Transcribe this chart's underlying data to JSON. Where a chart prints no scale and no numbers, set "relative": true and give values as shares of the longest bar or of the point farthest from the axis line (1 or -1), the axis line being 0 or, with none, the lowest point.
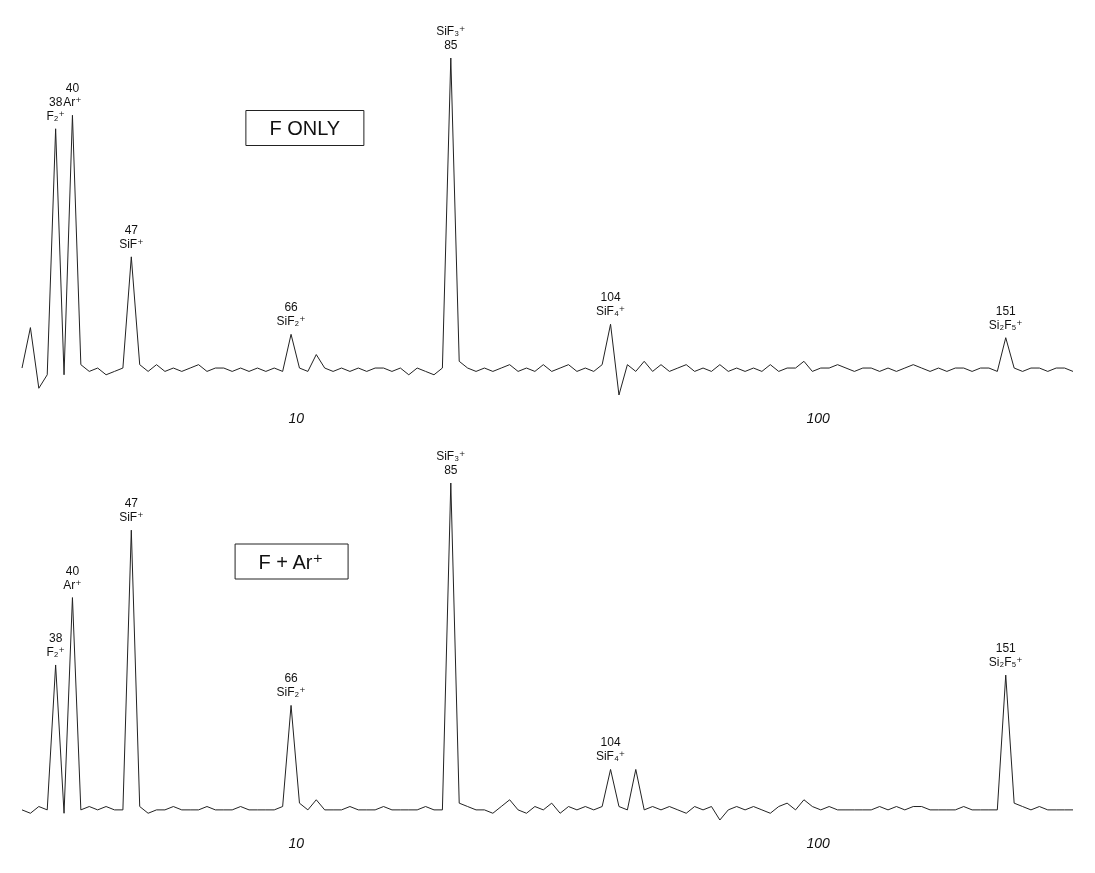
{
  "chart_data": [
    {
      "type": "line",
      "title": "F ONLY",
      "relative": true,
      "color": "#222222",
      "categories": [
        null,
        null,
        null,
        null,
        null,
        null,
        null,
        null,
        null,
        null,
        null,
        null,
        null,
        null,
        null,
        null,
        null,
        null,
        null,
        null,
        null,
        null,
        null,
        null,
        null,
        null,
        null,
        null,
        null,
        null,
        null,
        null,
        null,
        null,
        null,
        null,
        null,
        null,
        null,
        null,
        null,
        null,
        null,
        null,
        null,
        null,
        null,
        null,
        null,
        null,
        null,
        null,
        null,
        null,
        null,
        null,
        null,
        null,
        null,
        null,
        null,
        null,
        null,
        null,
        null,
        null,
        null,
        null,
        null,
        null,
        null,
        null,
        null,
        null,
        null,
        null,
        null,
        null,
        null,
        null,
        null,
        null,
        null,
        null,
        null,
        null,
        null,
        null,
        null,
        null,
        null,
        null,
        null,
        null,
        null,
        null,
        null,
        null,
        null,
        null,
        null,
        null,
        null,
        null,
        null,
        null,
        null,
        null,
        null,
        null,
        null,
        null,
        null,
        null,
        null,
        null,
        null,
        null,
        null,
        null,
        null,
        null,
        null,
        null,
        null,
        null
      ],
      "values": [
        0.08,
        0.2,
        0.02,
        0.06,
        0.79,
        0.06,
        0.83,
        0.09,
        0.07,
        0.08,
        0.06,
        0.07,
        0.08,
        0.41,
        0.09,
        0.07,
        0.09,
        0.07,
        0.08,
        0.07,
        0.08,
        0.09,
        0.07,
        0.08,
        0.08,
        0.07,
        0.08,
        0.07,
        0.08,
        0.07,
        0.08,
        0.07,
        0.18,
        0.08,
        0.07,
        0.12,
        0.08,
        0.07,
        0.08,
        0.07,
        0.08,
        0.07,
        0.08,
        0.08,
        0.07,
        0.08,
        0.06,
        0.08,
        0.07,
        0.06,
        0.08,
        1.0,
        0.1,
        0.08,
        0.07,
        0.08,
        0.07,
        0.08,
        0.09,
        0.07,
        0.08,
        0.07,
        0.09,
        0.07,
        0.08,
        0.09,
        0.07,
        0.08,
        0.07,
        0.09,
        0.21,
        0.0,
        0.09,
        0.07,
        0.1,
        0.07,
        0.09,
        0.07,
        0.08,
        0.09,
        0.07,
        0.08,
        0.07,
        0.09,
        0.07,
        0.08,
        0.07,
        0.08,
        0.07,
        0.09,
        0.07,
        0.08,
        0.08,
        0.1,
        0.07,
        0.08,
        0.08,
        0.09,
        0.08,
        0.07,
        0.08,
        0.08,
        0.07,
        0.08,
        0.07,
        0.08,
        0.09,
        0.08,
        0.07,
        0.08,
        0.07,
        0.08,
        0.08,
        0.07,
        0.08,
        0.08,
        0.07,
        0.17,
        0.08,
        0.07,
        0.08,
        0.08,
        0.07,
        0.08,
        0.08,
        0.07
      ],
      "annotations": [
        "38\nF₂⁺",
        "40\nAr⁺",
        "47\nSiF⁺",
        "66\nSiF₂⁺",
        "SiF₃⁺\n85",
        "104\nSiF₄⁺",
        "151\nSi₂F₅⁺",
        "10",
        "100"
      ]
    },
    {
      "type": "line",
      "title": "F + Ar⁺",
      "relative": true,
      "color": "#222222",
      "categories": [
        null,
        null,
        null,
        null,
        null,
        null,
        null,
        null,
        null,
        null,
        null,
        null,
        null,
        null,
        null,
        null,
        null,
        null,
        null,
        null,
        null,
        null,
        null,
        null,
        null,
        null,
        null,
        null,
        null,
        null,
        null,
        null,
        null,
        null,
        null,
        null,
        null,
        null,
        null,
        null,
        null,
        null,
        null,
        null,
        null,
        null,
        null,
        null,
        null,
        null,
        null,
        null,
        null,
        null,
        null,
        null,
        null,
        null,
        null,
        null,
        null,
        null,
        null,
        null,
        null,
        null,
        null,
        null,
        null,
        null,
        null,
        null,
        null,
        null,
        null,
        null,
        null,
        null,
        null,
        null,
        null,
        null,
        null,
        null,
        null,
        null,
        null,
        null,
        null,
        null,
        null,
        null,
        null,
        null,
        null,
        null,
        null,
        null,
        null,
        null,
        null,
        null,
        null,
        null,
        null,
        null,
        null,
        null,
        null,
        null,
        null,
        null,
        null,
        null,
        null,
        null,
        null,
        null,
        null,
        null,
        null,
        null,
        null,
        null,
        null,
        null
      ],
      "values": [
        0.03,
        0.02,
        0.04,
        0.03,
        0.46,
        0.02,
        0.66,
        0.03,
        0.04,
        0.03,
        0.04,
        0.03,
        0.03,
        0.86,
        0.04,
        0.02,
        0.03,
        0.03,
        0.04,
        0.03,
        0.03,
        0.03,
        0.04,
        0.03,
        0.03,
        0.03,
        0.04,
        0.03,
        0.03,
        0.03,
        0.03,
        0.04,
        0.34,
        0.05,
        0.03,
        0.06,
        0.03,
        0.03,
        0.03,
        0.04,
        0.03,
        0.03,
        0.03,
        0.04,
        0.03,
        0.03,
        0.03,
        0.03,
        0.04,
        0.03,
        0.03,
        1.0,
        0.05,
        0.04,
        0.03,
        0.03,
        0.02,
        0.04,
        0.06,
        0.03,
        0.02,
        0.04,
        0.03,
        0.05,
        0.02,
        0.04,
        0.03,
        0.04,
        0.03,
        0.04,
        0.15,
        0.04,
        0.03,
        0.15,
        0.03,
        0.04,
        0.03,
        0.04,
        0.03,
        0.02,
        0.04,
        0.03,
        0.04,
        0.0,
        0.03,
        0.04,
        0.03,
        0.04,
        0.03,
        0.02,
        0.04,
        0.05,
        0.03,
        0.06,
        0.04,
        0.03,
        0.04,
        0.03,
        0.03,
        0.03,
        0.03,
        0.03,
        0.04,
        0.03,
        0.04,
        0.03,
        0.04,
        0.04,
        0.03,
        0.03,
        0.03,
        0.03,
        0.04,
        0.03,
        0.03,
        0.03,
        0.03,
        0.43,
        0.05,
        0.04,
        0.03,
        0.04,
        0.03,
        0.03,
        0.03,
        0.03
      ],
      "annotations": [
        "38\nF₂⁺",
        "40\nAr⁺",
        "47\nSiF⁺",
        "66\nSiF₂⁺",
        "SiF₃⁺\n85",
        "104\nSiF₄⁺",
        "151\nSi₂F₅⁺",
        "10",
        "100"
      ]
    }
  ]
}
